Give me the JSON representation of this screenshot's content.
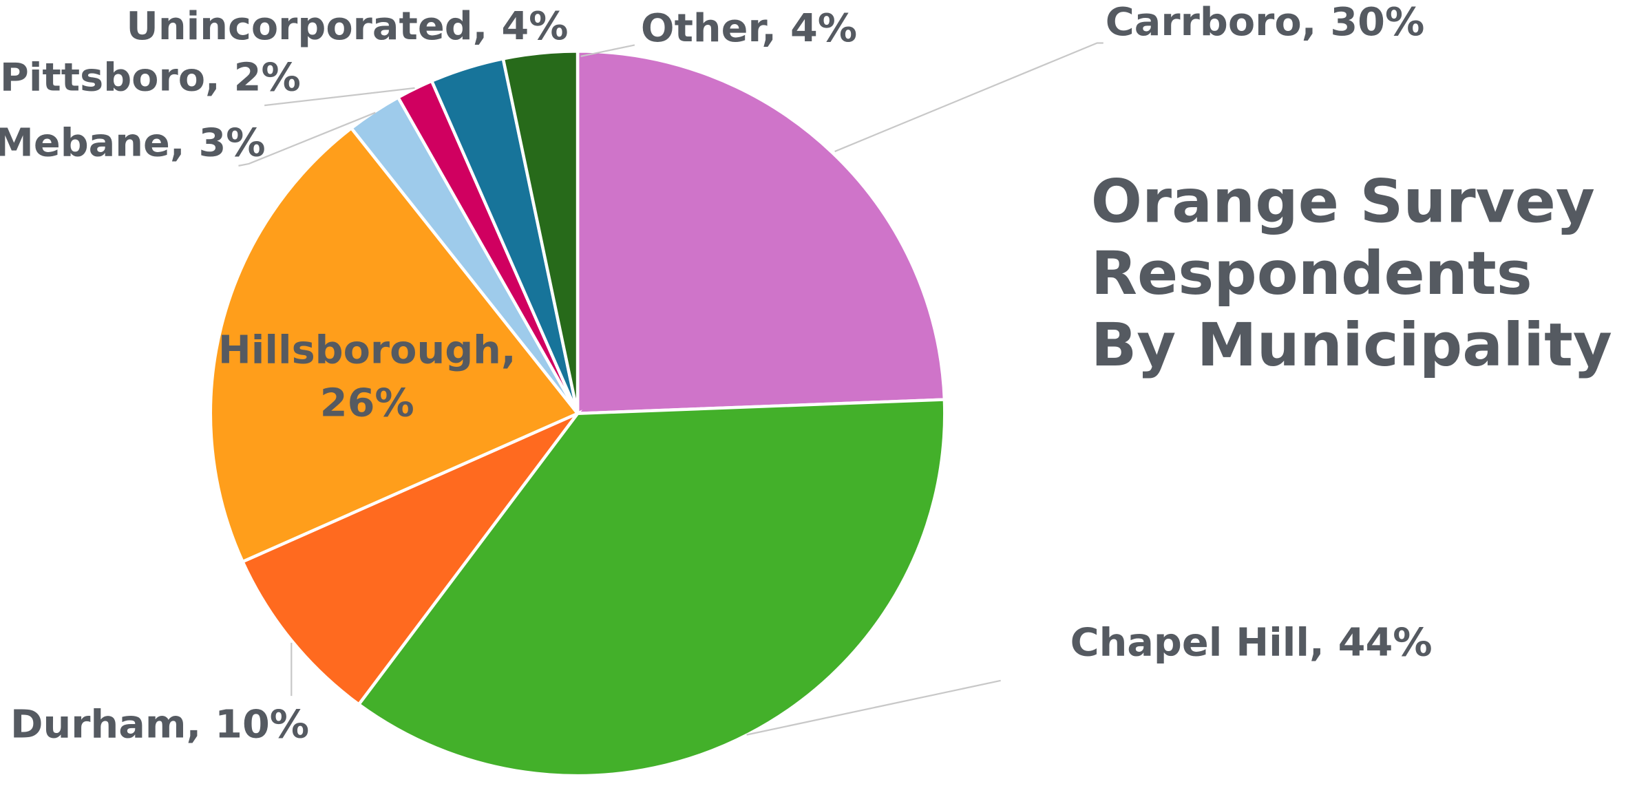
{
  "chart_data": {
    "type": "pie",
    "title": "Orange Survey Respondents By Municipality",
    "values": [
      30,
      44,
      10,
      26,
      3,
      2,
      4,
      4
    ],
    "value_labels": [
      "Carrboro, 30%",
      "Chapel Hill, 44%",
      "Durham, 10%",
      "Hillsborough, 26%",
      "Mebane, 3%",
      "Pittsboro, 2%",
      "Unincorporated, 4%",
      "Other, 4%"
    ],
    "colors": [
      "#cf74c9",
      "#43b02a",
      "#ff6a1f",
      "#ff9e1b",
      "#9ecbeb",
      "#d00060",
      "#17749a",
      "#276a1a"
    ]
  }
}
